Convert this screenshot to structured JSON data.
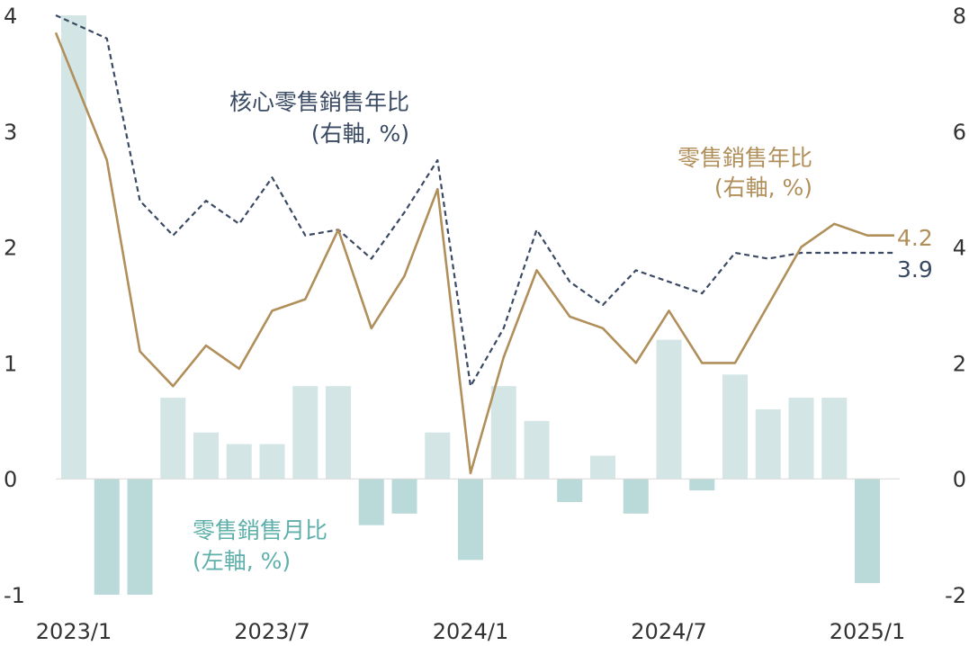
{
  "chart_data": {
    "type": "bar",
    "categories": [
      "2023/1",
      "2023/2",
      "2023/3",
      "2023/4",
      "2023/5",
      "2023/6",
      "2023/7",
      "2023/8",
      "2023/9",
      "2023/10",
      "2023/11",
      "2023/12",
      "2024/1",
      "2024/2",
      "2024/3",
      "2024/4",
      "2024/5",
      "2024/6",
      "2024/7",
      "2024/8",
      "2024/9",
      "2024/10",
      "2024/11",
      "2024/12",
      "2025/1",
      "2025/2"
    ],
    "x_tick_labels": [
      "2023/1",
      "2023/7",
      "2024/1",
      "2024/7",
      "2025/1"
    ],
    "x_tick_indices": [
      0,
      6,
      12,
      18,
      24
    ],
    "left_axis": {
      "ylim": [
        -1,
        4
      ],
      "ticks": [
        "-1",
        "0",
        "1",
        "2",
        "3",
        "4"
      ]
    },
    "right_axis": {
      "ylim": [
        -2,
        8
      ],
      "ticks": [
        "-2",
        "0",
        "2",
        "4",
        "6",
        "8"
      ]
    },
    "series": [
      {
        "name": "零售銷售月比",
        "sublabel": "(左軸, %)",
        "type": "bar",
        "axis": "left",
        "color_pos": "#d3e6e5",
        "color_neg": "#b9dad8",
        "label_color": "#5fb0aa",
        "values": [
          4.2,
          -1.0,
          -1.0,
          0.7,
          0.4,
          0.3,
          0.3,
          0.8,
          0.8,
          -0.4,
          -0.3,
          0.4,
          -0.7,
          0.8,
          0.5,
          -0.2,
          0.2,
          -0.3,
          1.2,
          -0.1,
          0.9,
          0.6,
          0.7,
          0.7,
          -0.9,
          null
        ]
      },
      {
        "name": "核心零售銷售年比",
        "sublabel": "(右軸, %)",
        "type": "line",
        "dash": true,
        "axis": "right",
        "color": "#3a4a63",
        "values": [
          8.2,
          7.6,
          4.8,
          4.2,
          4.8,
          4.4,
          5.2,
          4.2,
          4.3,
          3.8,
          4.6,
          5.5,
          1.6,
          2.6,
          4.3,
          3.4,
          3.0,
          3.6,
          3.4,
          3.2,
          3.9,
          3.8,
          3.9,
          3.9,
          3.9,
          3.9
        ],
        "end_label": "3.9"
      },
      {
        "name": "零售銷售年比",
        "sublabel": "(右軸, %)",
        "type": "line",
        "dash": false,
        "axis": "right",
        "color": "#b08f5a",
        "values": [
          7.7,
          5.5,
          2.2,
          1.6,
          2.3,
          1.9,
          2.9,
          3.1,
          4.3,
          2.6,
          3.5,
          5.0,
          0.1,
          2.1,
          3.6,
          2.8,
          2.6,
          2.0,
          2.9,
          2.0,
          2.0,
          3.0,
          4.0,
          4.4,
          4.2,
          4.2
        ],
        "end_label": "4.2"
      }
    ]
  }
}
